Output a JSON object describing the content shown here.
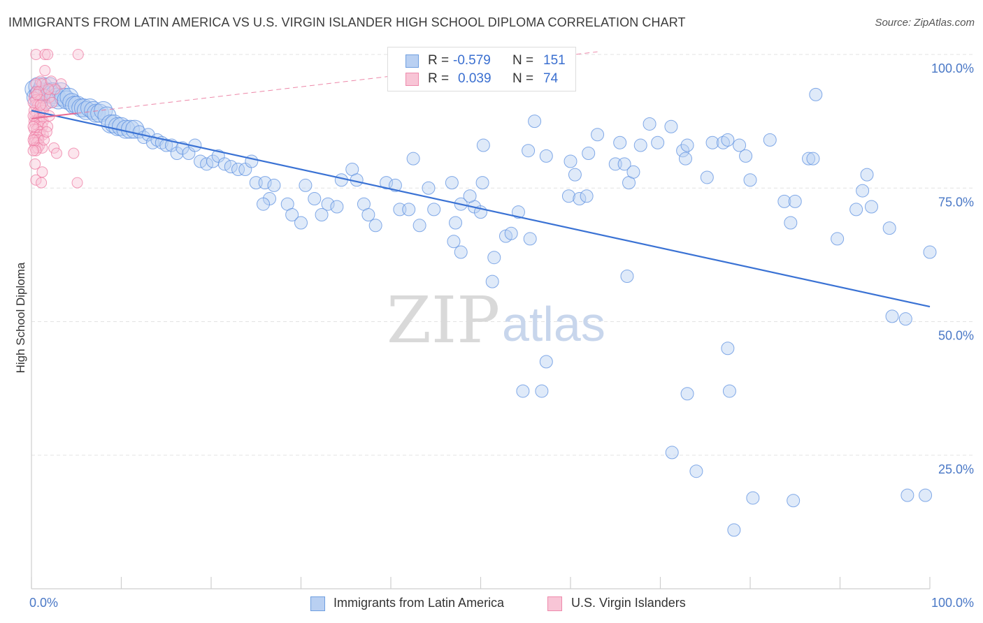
{
  "title": "IMMIGRANTS FROM LATIN AMERICA VS U.S. VIRGIN ISLANDER HIGH SCHOOL DIPLOMA CORRELATION CHART",
  "source": "Source: ZipAtlas.com",
  "watermark": {
    "zip": "ZIP",
    "atlas": "atlas"
  },
  "legend": {
    "series": [
      {
        "r_label": "R =",
        "r_value": "-0.579",
        "n_label": "N =",
        "n_value": "151",
        "color": "#6f9fe0",
        "fill": "#b9d0f2"
      },
      {
        "r_label": "R =",
        "r_value": "0.039",
        "n_label": "N =",
        "n_value": "74",
        "color": "#ee8aac",
        "fill": "#f8c5d6"
      }
    ]
  },
  "bottom_legend": {
    "items": [
      {
        "label": "Immigrants from Latin America"
      },
      {
        "label": "U.S. Virgin Islanders"
      }
    ]
  },
  "chart_data": {
    "type": "scatter",
    "title": "IMMIGRANTS FROM LATIN AMERICA VS U.S. VIRGIN ISLANDER HIGH SCHOOL DIPLOMA CORRELATION CHART",
    "xlabel": "",
    "ylabel": "High School Diploma",
    "xlim": [
      0,
      100
    ],
    "ylim": [
      0,
      100
    ],
    "x_tick_labels": [
      "0.0%",
      "100.0%"
    ],
    "y_ticks": [
      25,
      50,
      75,
      100
    ],
    "y_tick_labels": [
      "25.0%",
      "50.0%",
      "75.0%",
      "100.0%"
    ],
    "grid": "horizontal dashed",
    "legend_placement": "top-center",
    "series": [
      {
        "name": "Immigrants from Latin America",
        "color": "#5b8fe0",
        "fill": "#b9d0f2",
        "trend": {
          "x": [
            0,
            100
          ],
          "y": [
            89.5,
            52.8
          ],
          "color": "#3a72d4"
        },
        "points": [
          [
            0.3,
            93.5
          ],
          [
            0.5,
            92
          ],
          [
            0.7,
            94
          ],
          [
            0.8,
            92.5
          ],
          [
            0.9,
            91.5
          ],
          [
            1.0,
            93
          ],
          [
            1.2,
            92.5
          ],
          [
            1.3,
            94
          ],
          [
            1.5,
            93
          ],
          [
            1.7,
            91.5
          ],
          [
            1.8,
            93
          ],
          [
            2.0,
            94
          ],
          [
            2.2,
            92.5
          ],
          [
            2.4,
            93
          ],
          [
            2.6,
            92.5
          ],
          [
            2.8,
            92
          ],
          [
            3.0,
            91.5
          ],
          [
            3.3,
            93
          ],
          [
            3.6,
            92
          ],
          [
            3.9,
            91.5
          ],
          [
            4.2,
            92
          ],
          [
            4.5,
            91
          ],
          [
            4.8,
            90.5
          ],
          [
            5.1,
            90.5
          ],
          [
            5.5,
            90
          ],
          [
            5.8,
            90
          ],
          [
            6.1,
            89.5
          ],
          [
            6.5,
            90
          ],
          [
            6.9,
            89.5
          ],
          [
            7.2,
            89
          ],
          [
            7.6,
            89
          ],
          [
            8.0,
            89.5
          ],
          [
            8.4,
            88.5
          ],
          [
            8.8,
            87
          ],
          [
            9.2,
            87
          ],
          [
            9.6,
            86.5
          ],
          [
            10.0,
            86.5
          ],
          [
            10.5,
            86
          ],
          [
            11.0,
            86
          ],
          [
            11.5,
            86
          ],
          [
            12.0,
            85.5
          ],
          [
            12.5,
            84.5
          ],
          [
            13.0,
            85
          ],
          [
            13.5,
            83.5
          ],
          [
            14.0,
            84
          ],
          [
            14.5,
            83.5
          ],
          [
            15.0,
            83
          ],
          [
            15.6,
            83
          ],
          [
            16.2,
            81.5
          ],
          [
            16.8,
            82.5
          ],
          [
            17.5,
            81.5
          ],
          [
            18.2,
            83
          ],
          [
            18.8,
            80
          ],
          [
            19.5,
            79.5
          ],
          [
            20.2,
            80
          ],
          [
            20.8,
            81
          ],
          [
            21.5,
            79.5
          ],
          [
            22.2,
            79
          ],
          [
            23.0,
            78.5
          ],
          [
            23.8,
            78.5
          ],
          [
            24.5,
            80
          ],
          [
            25.0,
            76
          ],
          [
            26.0,
            76
          ],
          [
            27.0,
            75.5
          ],
          [
            26.5,
            73
          ],
          [
            25.8,
            72
          ],
          [
            28.5,
            72
          ],
          [
            30.5,
            75.5
          ],
          [
            31.5,
            73
          ],
          [
            29.0,
            70
          ],
          [
            30.0,
            68.5
          ],
          [
            34.5,
            76.5
          ],
          [
            35.7,
            78.5
          ],
          [
            33.0,
            72
          ],
          [
            32.3,
            70
          ],
          [
            34.0,
            71.5
          ],
          [
            36.2,
            76.5
          ],
          [
            37.0,
            72
          ],
          [
            37.5,
            70
          ],
          [
            38.3,
            68
          ],
          [
            39.5,
            76
          ],
          [
            40.5,
            75.5
          ],
          [
            41.0,
            71
          ],
          [
            42.0,
            71
          ],
          [
            42.5,
            80.5
          ],
          [
            43.2,
            68
          ],
          [
            44.2,
            75
          ],
          [
            44.8,
            71
          ],
          [
            46.8,
            76
          ],
          [
            47.0,
            65
          ],
          [
            47.8,
            63
          ],
          [
            47.8,
            72
          ],
          [
            47.2,
            68.5
          ],
          [
            49.3,
            71.5
          ],
          [
            48.8,
            73.5
          ],
          [
            50.0,
            70.5
          ],
          [
            50.2,
            76
          ],
          [
            50.3,
            83
          ],
          [
            51.5,
            62
          ],
          [
            51.3,
            57.5
          ],
          [
            52.8,
            66
          ],
          [
            53.4,
            66.5
          ],
          [
            54.2,
            70.5
          ],
          [
            55.5,
            65.5
          ],
          [
            55.3,
            82
          ],
          [
            56.0,
            87.5
          ],
          [
            57.3,
            81
          ],
          [
            60.0,
            80
          ],
          [
            60.5,
            77.5
          ],
          [
            59.8,
            73.5
          ],
          [
            61.0,
            73
          ],
          [
            62.0,
            81.5
          ],
          [
            61.8,
            73.5
          ],
          [
            63.0,
            85
          ],
          [
            65.0,
            79.5
          ],
          [
            65.5,
            83.5
          ],
          [
            66.0,
            79.5
          ],
          [
            66.5,
            76
          ],
          [
            67.0,
            78
          ],
          [
            67.8,
            83
          ],
          [
            68.8,
            87
          ],
          [
            69.7,
            83.5
          ],
          [
            71.2,
            86.5
          ],
          [
            72.5,
            82
          ],
          [
            73.0,
            83
          ],
          [
            72.8,
            80.5
          ],
          [
            75.8,
            83.5
          ],
          [
            75.2,
            77
          ],
          [
            77.0,
            83.5
          ],
          [
            77.5,
            84
          ],
          [
            78.8,
            83
          ],
          [
            79.5,
            81
          ],
          [
            80.0,
            76.5
          ],
          [
            82.2,
            84
          ],
          [
            83.8,
            72.5
          ],
          [
            84.5,
            68.5
          ],
          [
            85.0,
            72.5
          ],
          [
            86.5,
            80.5
          ],
          [
            87.0,
            80.5
          ],
          [
            89.7,
            65.5
          ],
          [
            91.8,
            71
          ],
          [
            92.5,
            74.5
          ],
          [
            93.0,
            77.5
          ],
          [
            93.5,
            71.5
          ],
          [
            95.8,
            51
          ],
          [
            97.3,
            50.5
          ],
          [
            100.0,
            63
          ],
          [
            95.5,
            67.5
          ],
          [
            97.5,
            17.5
          ],
          [
            99.5,
            17.5
          ],
          [
            77.5,
            45
          ],
          [
            77.7,
            37
          ]
        ],
        "extra_points_note_free": [
          [
            87.3,
            92.5
          ],
          [
            66.3,
            58.5
          ],
          [
            57.3,
            42.5
          ],
          [
            54.7,
            37
          ],
          [
            56.8,
            37
          ],
          [
            73.0,
            36.5
          ],
          [
            71.3,
            25.5
          ],
          [
            74.0,
            22
          ],
          [
            80.3,
            17
          ],
          [
            84.8,
            16.5
          ],
          [
            78.2,
            11
          ]
        ]
      },
      {
        "name": "U.S. Virgin Islanders",
        "color": "#ee7aa2",
        "fill": "#f8c5d6",
        "trend": {
          "x": [
            0,
            63
          ],
          "y": [
            88.0,
            100.5
          ],
          "color": "#e86a94"
        },
        "points": [
          [
            0.5,
            100
          ],
          [
            1.5,
            100
          ],
          [
            1.8,
            100
          ],
          [
            5.2,
            100
          ],
          [
            1.5,
            97
          ],
          [
            1.0,
            95
          ],
          [
            1.2,
            94.5
          ],
          [
            0.5,
            94.5
          ],
          [
            2.2,
            95
          ],
          [
            3.3,
            94.5
          ],
          [
            0.5,
            93
          ],
          [
            0.8,
            93
          ],
          [
            1.5,
            92.5
          ],
          [
            0.3,
            92
          ],
          [
            0.5,
            91.5
          ],
          [
            1.0,
            91.5
          ],
          [
            2.0,
            92
          ],
          [
            0.4,
            90.5
          ],
          [
            0.7,
            90.5
          ],
          [
            1.1,
            90
          ],
          [
            0.3,
            89.5
          ],
          [
            0.6,
            89
          ],
          [
            0.9,
            89
          ],
          [
            1.3,
            89.5
          ],
          [
            0.4,
            88.5
          ],
          [
            0.8,
            88
          ],
          [
            1.1,
            88
          ],
          [
            0.3,
            87.5
          ],
          [
            0.6,
            87.5
          ],
          [
            0.9,
            87.5
          ],
          [
            1.3,
            87.5
          ],
          [
            0.4,
            87
          ],
          [
            0.8,
            86.5
          ],
          [
            1.2,
            86.5
          ],
          [
            0.3,
            86
          ],
          [
            0.6,
            86
          ],
          [
            1.0,
            85.5
          ],
          [
            0.5,
            85
          ],
          [
            0.9,
            85
          ],
          [
            1.3,
            85
          ],
          [
            0.3,
            84.5
          ],
          [
            0.7,
            84.5
          ],
          [
            0.4,
            84
          ],
          [
            0.8,
            84
          ],
          [
            0.3,
            83.5
          ],
          [
            0.6,
            83.5
          ],
          [
            0.9,
            83
          ],
          [
            0.4,
            82.5
          ],
          [
            0.7,
            82.5
          ],
          [
            1.2,
            82.5
          ],
          [
            2.5,
            82.5
          ],
          [
            0.5,
            82
          ],
          [
            2.8,
            81.5
          ],
          [
            4.7,
            81.5
          ],
          [
            0.4,
            79.5
          ],
          [
            1.2,
            78
          ],
          [
            0.5,
            76.5
          ],
          [
            1.1,
            76
          ],
          [
            5.1,
            76
          ],
          [
            1.8,
            86.5
          ],
          [
            2.0,
            88.5
          ],
          [
            1.6,
            90.5
          ],
          [
            2.3,
            91
          ],
          [
            2.6,
            93.5
          ],
          [
            1.9,
            93.5
          ],
          [
            0.2,
            91
          ],
          [
            0.2,
            88.5
          ],
          [
            0.2,
            86.5
          ],
          [
            0.2,
            84
          ],
          [
            0.2,
            82
          ],
          [
            1.4,
            84
          ],
          [
            1.7,
            85.5
          ],
          [
            0.6,
            92.5
          ],
          [
            1.0,
            90.5
          ]
        ]
      }
    ]
  }
}
